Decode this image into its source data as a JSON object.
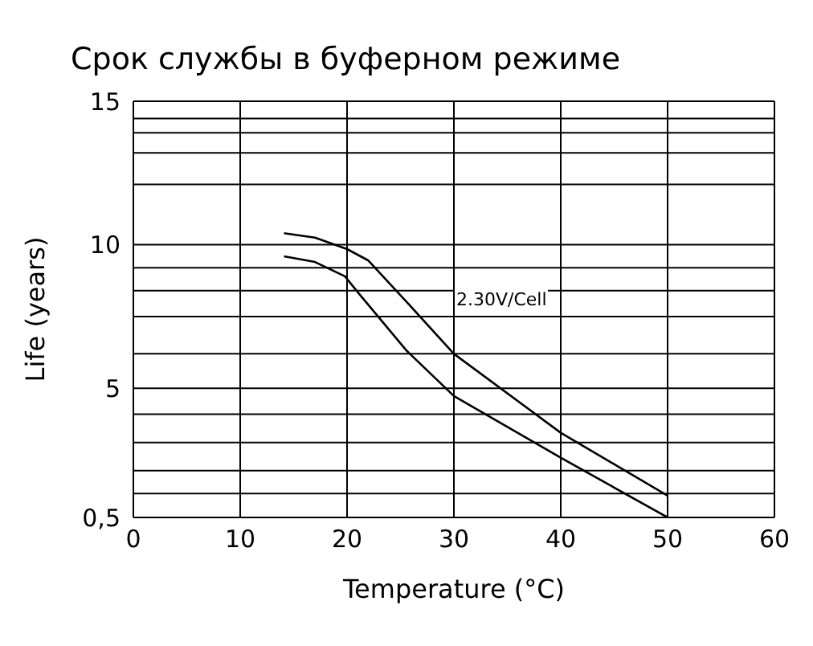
{
  "chart_data": {
    "type": "line",
    "title": "Срок службы в буферном режиме",
    "xlabel": "Temperature (°C)",
    "ylabel": "Life (years)",
    "xlim": [
      0,
      60
    ],
    "xticks": [
      0,
      10,
      20,
      30,
      40,
      50,
      60
    ],
    "ylim": [
      0.5,
      15
    ],
    "yticks": [
      {
        "value": 0.5,
        "label": "0,5"
      },
      {
        "value": 1.33,
        "label": null
      },
      {
        "value": 2.13,
        "label": null
      },
      {
        "value": 3.11,
        "label": null
      },
      {
        "value": 4.1,
        "label": null
      },
      5,
      {
        "value": 6.2,
        "label": null
      },
      {
        "value": 7.5,
        "label": null
      },
      {
        "value": 8.4,
        "label": null
      },
      {
        "value": 9.2,
        "label": null
      },
      10,
      {
        "value": 12.1,
        "label": null
      },
      {
        "value": 13.2,
        "label": null
      },
      {
        "value": 13.9,
        "label": null
      },
      {
        "value": 14.4,
        "label": null
      },
      15
    ],
    "grid": true,
    "marker": "none",
    "line_style": "solid",
    "series": [
      {
        "color": "#000000",
        "x": [
          14.1,
          17,
          20,
          22,
          25.6,
          30,
          40,
          50
        ],
        "values": [
          10.4,
          10.25,
          9.85,
          9.45,
          8.0,
          6.2,
          3.45,
          1.26
        ]
      },
      {
        "color": "#000000",
        "x": [
          14.1,
          17,
          19.8,
          21,
          25.6,
          30,
          40,
          50
        ],
        "values": [
          9.6,
          9.4,
          8.9,
          8.35,
          6.3,
          4.73,
          2.58,
          0.5
        ]
      }
    ],
    "annotations": [
      "2.30V/Cell"
    ]
  }
}
